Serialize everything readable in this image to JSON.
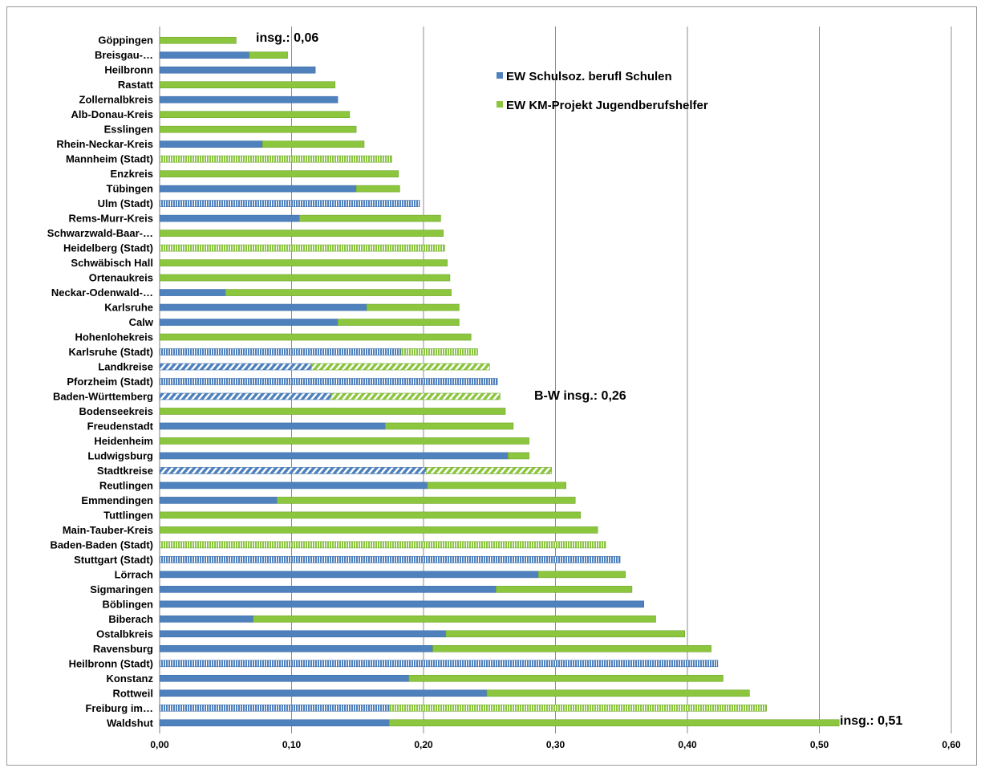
{
  "chart_data": {
    "type": "bar",
    "orientation": "horizontal",
    "stacked": true,
    "categories": [
      "Göppingen",
      "Breisgau-…",
      "Heilbronn",
      "Rastatt",
      "Zollernalbkreis",
      "Alb-Donau-Kreis",
      "Esslingen",
      "Rhein-Neckar-Kreis",
      "Mannheim (Stadt)",
      "Enzkreis",
      "Tübingen",
      "Ulm (Stadt)",
      "Rems-Murr-Kreis",
      "Schwarzwald-Baar-…",
      "Heidelberg (Stadt)",
      "Schwäbisch Hall",
      "Ortenaukreis",
      "Neckar-Odenwald-…",
      "Karlsruhe",
      "Calw",
      "Hohenlohekreis",
      "Karlsruhe (Stadt)",
      "Landkreise",
      "Pforzheim (Stadt)",
      "Baden-Württemberg",
      "Bodenseekreis",
      "Freudenstadt",
      "Heidenheim",
      "Ludwigsburg",
      "Stadtkreise",
      "Reutlingen",
      "Emmendingen",
      "Tuttlingen",
      "Main-Tauber-Kreis",
      "Baden-Baden (Stadt)",
      "Stuttgart (Stadt)",
      "Lörrach",
      "Sigmaringen",
      "Böblingen",
      "Biberach",
      "Ostalbkreis",
      "Ravensburg",
      "Heilbronn (Stadt)",
      "Konstanz",
      "Rottweil",
      "Freiburg im…",
      "Waldshut"
    ],
    "series": [
      {
        "name": "EW Schulsoz. berufl Schulen",
        "color": "#4f81bd",
        "values": [
          0,
          0.068,
          0.118,
          0,
          0.135,
          0,
          0,
          0.078,
          0,
          0,
          0.149,
          0.197,
          0.106,
          0,
          0,
          0,
          0,
          0.05,
          0.157,
          0.135,
          0,
          0.183,
          0.115,
          0.256,
          0.13,
          0,
          0.171,
          0,
          0.264,
          0.202,
          0.203,
          0.089,
          0,
          0,
          0,
          0.349,
          0.287,
          0.255,
          0.367,
          0.071,
          0.217,
          0.207,
          0.423,
          0.189,
          0.248,
          0.174,
          0.174
        ]
      },
      {
        "name": "EW KM-Projekt Jugendberufshelfer",
        "color": "#8cc63e",
        "values": [
          0.058,
          0.029,
          0,
          0.133,
          0,
          0.144,
          0.149,
          0.077,
          0.176,
          0.181,
          0.033,
          0,
          0.107,
          0.215,
          0.216,
          0.218,
          0.22,
          0.171,
          0.07,
          0.092,
          0.236,
          0.058,
          0.135,
          0,
          0.128,
          0.262,
          0.097,
          0.28,
          0.016,
          0.095,
          0.105,
          0.226,
          0.319,
          0.332,
          0.338,
          0,
          0.066,
          0.103,
          0,
          0.305,
          0.181,
          0.211,
          0,
          0.238,
          0.199,
          0.286,
          0.341
        ]
      }
    ],
    "pattern_categories": [
      "Mannheim (Stadt)",
      "Ulm (Stadt)",
      "Heidelberg (Stadt)",
      "Karlsruhe (Stadt)",
      "Pforzheim (Stadt)",
      "Stadtkreise",
      "Baden-Baden (Stadt)",
      "Stuttgart (Stadt)",
      "Heilbronn (Stadt)",
      "Freiburg im…"
    ],
    "hatch_categories": [
      "Landkreise",
      "Baden-Württemberg",
      "Stadtkreise"
    ],
    "x_ticks": [
      "0,00",
      "0,10",
      "0,20",
      "0,30",
      "0,40",
      "0,50",
      "0,60"
    ],
    "xlim": [
      0,
      0.6
    ],
    "grid": "vertical",
    "legend_position": "top-right",
    "annotations": {
      "top": "insg.: 0,06",
      "middle": "B-W insg.: 0,26",
      "bottom": "insg.: 0,51"
    }
  }
}
